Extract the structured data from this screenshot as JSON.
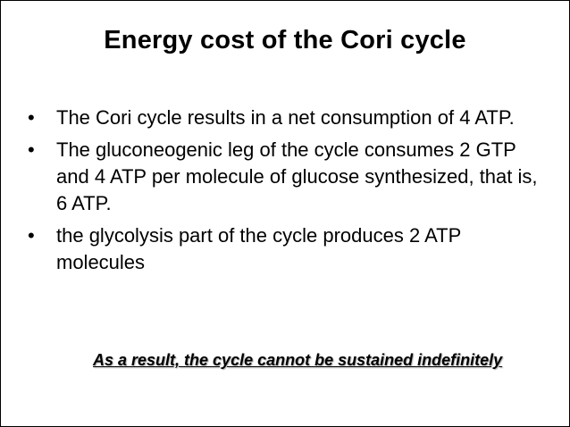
{
  "slide": {
    "title": "Energy cost of the Cori cycle",
    "bullet_symbol": "•",
    "bullets": [
      "The Cori cycle results in a net consumption of 4 ATP.",
      "The gluconeogenic leg of the cycle consumes 2 GTP and 4 ATP per molecule of glucose synthesized, that is, 6 ATP.",
      "the glycolysis part of the cycle produces 2 ATP molecules"
    ],
    "conclusion": "As a result, the cycle cannot be sustained indefinitely"
  }
}
